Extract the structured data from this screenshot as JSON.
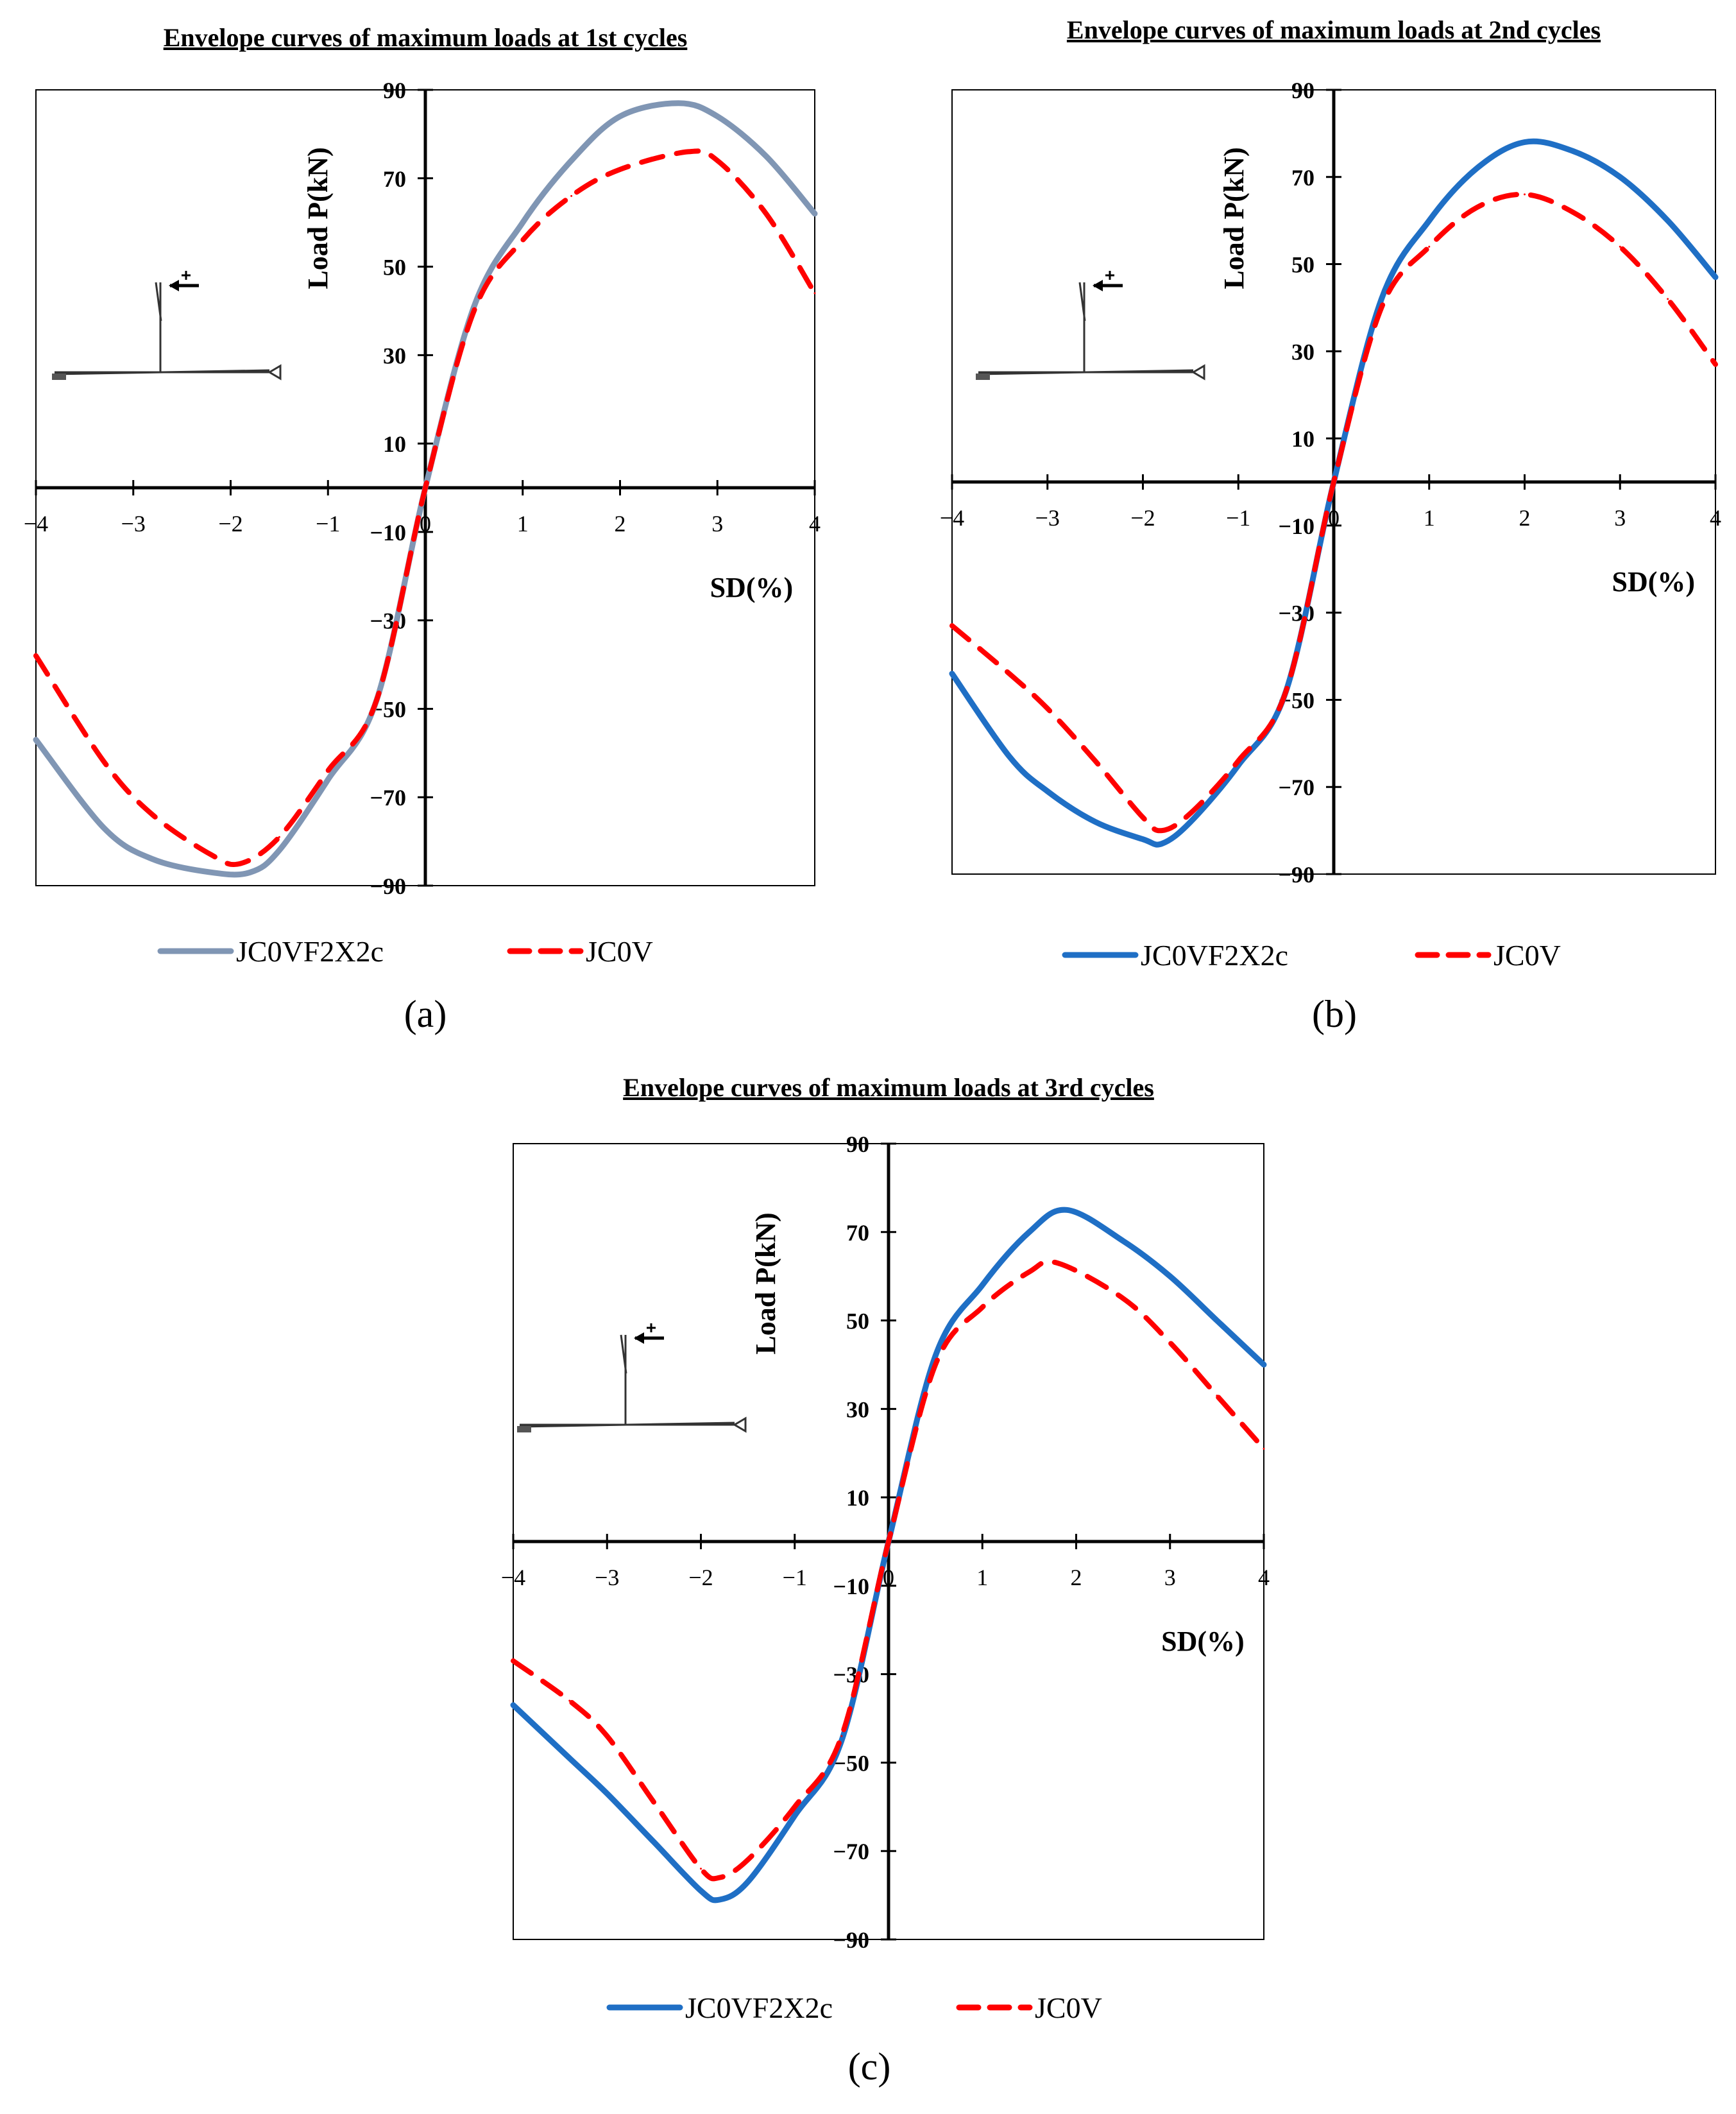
{
  "colors": {
    "series_a_primary": "#8096B4",
    "series_primary": "#1F6FC5",
    "series_secondary": "#FF0000",
    "axis": "#000000",
    "frame": "#000000"
  },
  "chart_data": [
    {
      "panel": "a",
      "type": "line",
      "title": "Envelope curves of maximum loads at 1st cycles",
      "xlabel": "SD(%)",
      "ylabel": "Load P(kN)",
      "xlim": [
        -4,
        4
      ],
      "ylim": [
        -90,
        90
      ],
      "xticks": [
        "−4",
        "−3",
        "−2",
        "−1",
        "0",
        "1",
        "2",
        "3",
        "4"
      ],
      "yticks": [
        "90",
        "70",
        "50",
        "30",
        "10",
        "−10",
        "−30",
        "−50",
        "−70",
        "−90"
      ],
      "caption": "(a)",
      "series": [
        {
          "name": "JC0VF2X2c",
          "style": "solid",
          "x": [
            -4,
            -3.3,
            -2.8,
            -2.2,
            -1.8,
            -1.5,
            -1,
            -0.5,
            0,
            0.5,
            1,
            1.5,
            2,
            2.6,
            3,
            3.5,
            4
          ],
          "y": [
            -57,
            -77,
            -84,
            -87,
            -87,
            -82,
            -66,
            -48,
            0,
            41,
            60,
            74,
            84,
            87,
            84,
            75,
            62
          ]
        },
        {
          "name": "JC0V",
          "style": "dashed",
          "x": [
            -4,
            -3.3,
            -2.8,
            -2.2,
            -1.9,
            -1.5,
            -1,
            -0.5,
            0,
            0.5,
            1,
            1.5,
            2,
            2.7,
            3,
            3.5,
            4
          ],
          "y": [
            -38,
            -62,
            -74,
            -83,
            -85,
            -79,
            -64,
            -48,
            0,
            40,
            56,
            66,
            72,
            76,
            74,
            62,
            44
          ]
        }
      ]
    },
    {
      "panel": "b",
      "type": "line",
      "title": "Envelope curves of maximum loads at 2nd cycles",
      "xlabel": "SD(%)",
      "ylabel": "Load P(kN)",
      "xlim": [
        -4,
        4
      ],
      "ylim": [
        -90,
        90
      ],
      "xticks": [
        "−4",
        "−3",
        "−2",
        "−1",
        "0",
        "1",
        "2",
        "3",
        "4"
      ],
      "yticks": [
        "90",
        "70",
        "50",
        "30",
        "10",
        "−10",
        "−30",
        "−50",
        "−70",
        "−90"
      ],
      "caption": "(b)",
      "series": [
        {
          "name": "JC0VF2X2c",
          "style": "solid",
          "x": [
            -4,
            -3.4,
            -3,
            -2.5,
            -2,
            -1.8,
            -1.5,
            -1,
            -0.5,
            0,
            0.5,
            1,
            1.5,
            2,
            2.5,
            3,
            3.5,
            4
          ],
          "y": [
            -44,
            -63,
            -71,
            -78,
            -82,
            -83,
            -78,
            -65,
            -48,
            0,
            42,
            60,
            72,
            78,
            76,
            70,
            60,
            47
          ]
        },
        {
          "name": "JC0V",
          "style": "dashed",
          "x": [
            -4,
            -3.4,
            -3,
            -2.5,
            -2,
            -1.8,
            -1.5,
            -1,
            -0.5,
            0,
            0.5,
            1,
            1.5,
            2,
            2.5,
            3,
            3.5,
            4
          ],
          "y": [
            -33,
            -44,
            -52,
            -64,
            -77,
            -80,
            -76,
            -64,
            -48,
            0,
            40,
            54,
            63,
            66,
            62,
            54,
            42,
            27
          ]
        }
      ]
    },
    {
      "panel": "c",
      "type": "line",
      "title": "Envelope curves of maximum loads at 3rd cycles",
      "xlabel": "SD(%)",
      "ylabel": "Load P(kN)",
      "xlim": [
        -4,
        4
      ],
      "ylim": [
        -90,
        90
      ],
      "xticks": [
        "−4",
        "−3",
        "−2",
        "−1",
        "0",
        "1",
        "2",
        "3",
        "4"
      ],
      "yticks": [
        "90",
        "70",
        "50",
        "30",
        "10",
        "−10",
        "−30",
        "−50",
        "−70",
        "−90"
      ],
      "caption": "(c)",
      "series": [
        {
          "name": "JC0VF2X2c",
          "style": "solid",
          "x": [
            -4,
            -3.4,
            -3,
            -2.5,
            -2,
            -1.8,
            -1.5,
            -1,
            -0.5,
            0,
            0.5,
            1,
            1.5,
            1.9,
            2.5,
            3,
            3.5,
            4
          ],
          "y": [
            -37,
            -49,
            -57,
            -68,
            -79,
            -81,
            -77,
            -62,
            -45,
            0,
            42,
            58,
            70,
            75,
            68,
            60,
            50,
            40
          ]
        },
        {
          "name": "JC0V",
          "style": "dashed",
          "x": [
            -4,
            -3.4,
            -3,
            -2.5,
            -2,
            -1.8,
            -1.5,
            -1,
            -0.5,
            0,
            0.5,
            1,
            1.5,
            1.8,
            2.5,
            3,
            3.5,
            4
          ],
          "y": [
            -27,
            -36,
            -44,
            -59,
            -74,
            -76,
            -72,
            -60,
            -44,
            0,
            40,
            53,
            61,
            63,
            55,
            45,
            33,
            21
          ]
        }
      ]
    }
  ]
}
